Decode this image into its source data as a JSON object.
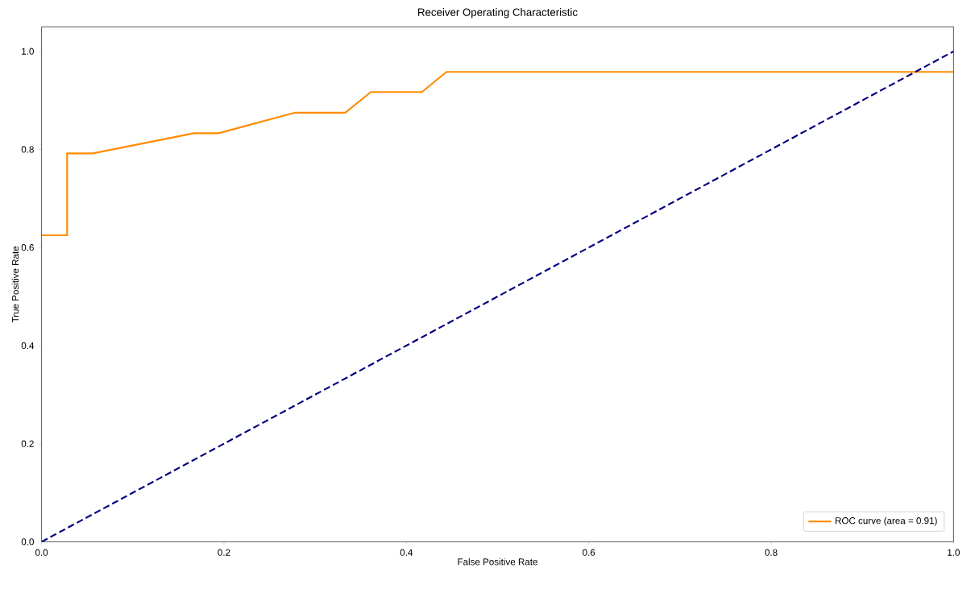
{
  "chart_data": {
    "type": "line",
    "title": "Receiver Operating Characteristic",
    "xlabel": "False Positive Rate",
    "ylabel": "True Positive Rate",
    "xlim": [
      0,
      1
    ],
    "ylim": [
      0,
      1.05
    ],
    "xticks": [
      {
        "value": 0,
        "label": "0.0"
      },
      {
        "value": 0.2,
        "label": "0.2"
      },
      {
        "value": 0.4,
        "label": "0.4"
      },
      {
        "value": 0.6,
        "label": "0.6"
      },
      {
        "value": 0.8,
        "label": "0.8"
      },
      {
        "value": 1,
        "label": "1.0"
      }
    ],
    "yticks": [
      {
        "value": 0,
        "label": "0.0"
      },
      {
        "value": 0.2,
        "label": "0.2"
      },
      {
        "value": 0.4,
        "label": "0.4"
      },
      {
        "value": 0.6,
        "label": "0.6"
      },
      {
        "value": 0.8,
        "label": "0.8"
      },
      {
        "value": 1,
        "label": "1.0"
      }
    ],
    "legend": "bottom right",
    "marker": "none",
    "series": [
      {
        "name": "ROC curve (area = 0.91)",
        "color": "#ff8c00",
        "line_style": "solid",
        "x": [
          0,
          0.028,
          0.028,
          0.056,
          0.167,
          0.194,
          0.278,
          0.333,
          0.361,
          0.417,
          0.444,
          1
        ],
        "values": [
          0.625,
          0.625,
          0.792,
          0.792,
          0.833,
          0.833,
          0.875,
          0.875,
          0.917,
          0.917,
          0.958,
          0.958
        ]
      },
      {
        "color": "#000080",
        "line_style": "dashed",
        "x": [
          0,
          1
        ],
        "values": [
          0,
          1
        ]
      }
    ]
  }
}
